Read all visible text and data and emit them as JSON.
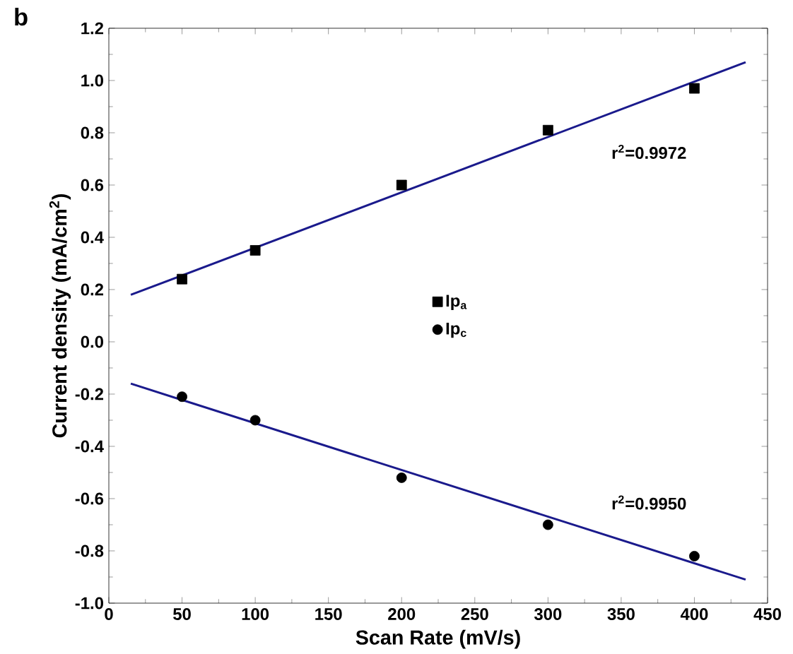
{
  "chart_data": {
    "type": "scatter",
    "xlabel": "Scan Rate (mV/s)",
    "ylabel": "Current density (mA/cm$^{2}$)",
    "annotations": [
      "b",
      "r$^{2}$=0.9972",
      "r$^{2}$=0.9950"
    ],
    "series": [
      {
        "name": "Ip$_{a}$",
        "marker": "square",
        "color": "#000000",
        "x": [
          50,
          100,
          200,
          300,
          400
        ],
        "values": [
          0.24,
          0.35,
          0.6,
          0.81,
          0.97
        ]
      },
      {
        "name": "Ip$_{c}$",
        "marker": "circle",
        "color": "#000000",
        "x": [
          50,
          100,
          200,
          300,
          400
        ],
        "values": [
          -0.21,
          -0.3,
          -0.52,
          -0.7,
          -0.82
        ]
      },
      {
        "type": "line",
        "color": "#1a1a8c",
        "x": [
          15,
          435
        ],
        "values": [
          0.18,
          1.07
        ]
      },
      {
        "type": "line",
        "color": "#1a1a8c",
        "x": [
          15,
          435
        ],
        "values": [
          -0.16,
          -0.91
        ]
      }
    ],
    "xlim": [
      0,
      450
    ],
    "ylim": [
      -1.0,
      1.2
    ],
    "xticks": [
      0,
      50,
      100,
      150,
      200,
      250,
      300,
      350,
      400,
      450
    ],
    "yticks": [
      {
        "value": -1.0,
        "label": "-1.0"
      },
      {
        "value": -0.8,
        "label": "-0.8"
      },
      {
        "value": -0.6,
        "label": "-0.6"
      },
      {
        "value": -0.4,
        "label": "-0.4"
      },
      {
        "value": -0.2,
        "label": "-0.2"
      },
      {
        "value": 0,
        "label": "0.0"
      },
      {
        "value": 0.2,
        "label": "0.2"
      },
      {
        "value": 0.4,
        "label": "0.4"
      },
      {
        "value": 0.6,
        "label": "0.6"
      },
      {
        "value": 0.8,
        "label": "0.8"
      },
      {
        "value": 1.0,
        "label": "1.0"
      },
      {
        "value": 1.2,
        "label": "1.2"
      }
    ],
    "legend": "center",
    "grid": false
  }
}
